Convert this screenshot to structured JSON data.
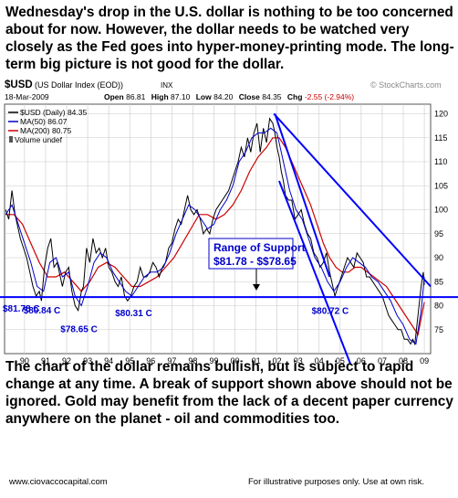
{
  "top_commentary": "Wednesday's drop in the U.S. dollar is nothing to be too concerned about for now.  However, the dollar needs to be watched very closely as the Fed goes into hyper-money-printing mode.  The long-term big picture is not good for the dollar.",
  "bottom_commentary": "The chart of the dollar remains bullish, but is subject to rapid change at any time.  A break of support shown above should not be ignored.  Gold may benefit from the lack of a decent paper currency anywhere on the planet - oil and commodities too.",
  "footer": {
    "website": "www.ciovaccocapital.com",
    "disclaimer": "For illustrative purposes only.  Use at own risk."
  },
  "chart_header": {
    "symbol": "$USD",
    "description": "(US Dollar Index (EOD))",
    "exchange": "INX",
    "date": "18-Mar-2009",
    "watermark": "© StockCharts.com",
    "open_label": "Open",
    "open_value": "86.81",
    "high_label": "High",
    "high_value": "87.10",
    "low_label": "Low",
    "low_value": "84.20",
    "close_label": "Close",
    "close_value": "84.35",
    "chg_label": "Chg",
    "chg_value": "-2.55 (-2.94%)",
    "legend_price": "$USD (Daily) 84.35",
    "legend_ma50": "MA(50) 86.07",
    "legend_ma200": "MA(200) 80.75",
    "legend_volume": "Volume undef"
  },
  "colors": {
    "price": "#000000",
    "ma50": "#0000cc",
    "ma200": "#cc0000",
    "trendlines": "#0000ff",
    "support": "#0000ff",
    "annotation_text": "#0000cc",
    "grid": "#c8c8c8",
    "plot_background": "#ffffff"
  },
  "annotations": {
    "range_title": "Range of Support",
    "range_values": "$81.78 - $$78.65",
    "lows": [
      {
        "label": "$81.78 C",
        "year": 1990.9,
        "value": 81.78
      },
      {
        "label": "$80.84 C",
        "year": 1991.2,
        "value": 80.84
      },
      {
        "label": "$78.65 C",
        "year": 1992.7,
        "value": 78.65
      },
      {
        "label": "$80.31 C",
        "year": 1995.3,
        "value": 80.31
      },
      {
        "label": "$80.72 C",
        "year": 2004.9,
        "value": 80.72
      }
    ]
  },
  "chart_data": {
    "type": "line",
    "xlim": [
      1989.25,
      2009.5
    ],
    "ylim": [
      70,
      122
    ],
    "x_ticks": [
      {
        "label": "90",
        "x": 1990.2
      },
      {
        "label": "91",
        "x": 1991.2
      },
      {
        "label": "92",
        "x": 1992.2
      },
      {
        "label": "93",
        "x": 1993.2
      },
      {
        "label": "94",
        "x": 1994.2
      },
      {
        "label": "95",
        "x": 1995.2
      },
      {
        "label": "96",
        "x": 1996.2
      },
      {
        "label": "97",
        "x": 1997.2
      },
      {
        "label": "98",
        "x": 1998.2
      },
      {
        "label": "99",
        "x": 1999.2
      },
      {
        "label": "00",
        "x": 2000.2
      },
      {
        "label": "01",
        "x": 2001.2
      },
      {
        "label": "02",
        "x": 2002.2
      },
      {
        "label": "03",
        "x": 2003.2
      },
      {
        "label": "04",
        "x": 2004.2
      },
      {
        "label": "05",
        "x": 2005.2
      },
      {
        "label": "06",
        "x": 2006.2
      },
      {
        "label": "07",
        "x": 2007.2
      },
      {
        "label": "08",
        "x": 2008.2
      },
      {
        "label": "09",
        "x": 2009.2
      }
    ],
    "y_ticks": [
      75,
      80,
      85,
      90,
      95,
      100,
      105,
      110,
      115,
      120
    ],
    "grid": true,
    "legend_position": "top-left",
    "series": [
      {
        "name": "$USD (Daily) 84.35",
        "x": [
          1989.3,
          1989.45,
          1989.6,
          1989.75,
          1989.9,
          1990.0,
          1990.15,
          1990.3,
          1990.45,
          1990.6,
          1990.75,
          1990.9,
          1991.0,
          1991.15,
          1991.3,
          1991.45,
          1991.6,
          1991.75,
          1991.9,
          1992.0,
          1992.15,
          1992.3,
          1992.45,
          1992.6,
          1992.75,
          1992.9,
          1993.0,
          1993.15,
          1993.3,
          1993.45,
          1993.6,
          1993.75,
          1993.9,
          1994.05,
          1994.2,
          1994.35,
          1994.5,
          1994.65,
          1994.8,
          1994.95,
          1995.1,
          1995.25,
          1995.4,
          1995.55,
          1995.7,
          1995.85,
          1996.0,
          1996.15,
          1996.3,
          1996.45,
          1996.6,
          1996.75,
          1996.9,
          1997.05,
          1997.2,
          1997.35,
          1997.5,
          1997.65,
          1997.8,
          1997.95,
          1998.1,
          1998.25,
          1998.4,
          1998.55,
          1998.7,
          1998.85,
          1999.0,
          1999.15,
          1999.3,
          1999.45,
          1999.6,
          1999.75,
          1999.9,
          2000.05,
          2000.2,
          2000.35,
          2000.5,
          2000.65,
          2000.8,
          2000.95,
          2001.1,
          2001.25,
          2001.4,
          2001.55,
          2001.7,
          2001.85,
          2002.0,
          2002.1,
          2002.2,
          2002.3,
          2002.4,
          2002.5,
          2002.6,
          2002.75,
          2002.9,
          2003.05,
          2003.2,
          2003.35,
          2003.5,
          2003.65,
          2003.8,
          2003.95,
          2004.1,
          2004.25,
          2004.4,
          2004.55,
          2004.7,
          2004.85,
          2004.95,
          2005.1,
          2005.25,
          2005.4,
          2005.55,
          2005.7,
          2005.85,
          2006.0,
          2006.15,
          2006.3,
          2006.45,
          2006.6,
          2006.75,
          2006.9,
          2007.05,
          2007.2,
          2007.35,
          2007.5,
          2007.65,
          2007.8,
          2007.95,
          2008.1,
          2008.25,
          2008.4,
          2008.55,
          2008.65,
          2008.75,
          2008.85,
          2008.95,
          2009.05,
          2009.15,
          2009.2
        ],
        "y": [
          100,
          98,
          104,
          99,
          96,
          94,
          92,
          90,
          87,
          84,
          82,
          83,
          81,
          88,
          92,
          94,
          88,
          89,
          86,
          84,
          87,
          88,
          83,
          80,
          79,
          83,
          84,
          92,
          89,
          94,
          91,
          92,
          90,
          92,
          88,
          87,
          85,
          84,
          86,
          82,
          81,
          82,
          84,
          85,
          88,
          86,
          86,
          87,
          89,
          88,
          86,
          88,
          89,
          92,
          93,
          96,
          98,
          97,
          100,
          103,
          100,
          99,
          100,
          98,
          95,
          96,
          95,
          98,
          100,
          101,
          102,
          103,
          104,
          106,
          108,
          110,
          113,
          111,
          115,
          112,
          116,
          118,
          112,
          117,
          114,
          119,
          118,
          116,
          113,
          111,
          108,
          106,
          103,
          102,
          102,
          98,
          99,
          100,
          97,
          95,
          94,
          91,
          90,
          88,
          89,
          91,
          87,
          84,
          82,
          84,
          86,
          88,
          90,
          89,
          88,
          91,
          90,
          89,
          86,
          86,
          85,
          84,
          83,
          82,
          80,
          78,
          77,
          76,
          75,
          75,
          73,
          73,
          72,
          73,
          72,
          76,
          80,
          84,
          87,
          84.35
        ]
      },
      {
        "name": "MA(50) 86.07",
        "x": [
          1989.3,
          1989.6,
          1989.9,
          1990.2,
          1990.5,
          1990.8,
          1991.1,
          1991.4,
          1991.7,
          1992.0,
          1992.3,
          1992.6,
          1992.9,
          1993.2,
          1993.5,
          1993.8,
          1994.1,
          1994.4,
          1994.7,
          1995.0,
          1995.3,
          1995.6,
          1995.9,
          1996.2,
          1996.5,
          1996.8,
          1997.1,
          1997.4,
          1997.7,
          1998.0,
          1998.3,
          1998.6,
          1998.9,
          1999.2,
          1999.5,
          1999.8,
          2000.1,
          2000.4,
          2000.7,
          2001.0,
          2001.3,
          2001.6,
          2001.9,
          2002.2,
          2002.5,
          2002.8,
          2003.1,
          2003.4,
          2003.7,
          2004.0,
          2004.3,
          2004.6,
          2004.9,
          2005.2,
          2005.5,
          2005.8,
          2006.1,
          2006.4,
          2006.7,
          2007.0,
          2007.3,
          2007.6,
          2007.9,
          2008.2,
          2008.5,
          2008.8,
          2009.05,
          2009.2
        ],
        "y": [
          99,
          101,
          97,
          93,
          89,
          84,
          83,
          89,
          90,
          86,
          87,
          82,
          80,
          84,
          89,
          91,
          90,
          87,
          85,
          83,
          82,
          84,
          86,
          87,
          87,
          88,
          91,
          95,
          98,
          101,
          100,
          98,
          96,
          97,
          100,
          102,
          105,
          110,
          112,
          115,
          116,
          116,
          117,
          116,
          110,
          104,
          100,
          98,
          94,
          90,
          88,
          85,
          83,
          85,
          88,
          90,
          89,
          88,
          86,
          85,
          83,
          81,
          78,
          76,
          73,
          72,
          79,
          86
        ]
      },
      {
        "name": "MA(200) 80.75",
        "x": [
          1989.3,
          1989.7,
          1990.1,
          1990.5,
          1990.9,
          1991.3,
          1991.7,
          1992.1,
          1992.5,
          1992.9,
          1993.3,
          1993.7,
          1994.1,
          1994.5,
          1994.9,
          1995.3,
          1995.7,
          1996.1,
          1996.5,
          1996.9,
          1997.3,
          1997.7,
          1998.1,
          1998.5,
          1998.9,
          1999.3,
          1999.7,
          2000.1,
          2000.5,
          2000.9,
          2001.3,
          2001.7,
          2002.0,
          2002.3,
          2002.6,
          2002.9,
          2003.2,
          2003.5,
          2003.8,
          2004.1,
          2004.4,
          2004.7,
          2005.0,
          2005.3,
          2005.6,
          2005.9,
          2006.2,
          2006.5,
          2006.8,
          2007.1,
          2007.4,
          2007.7,
          2008.0,
          2008.3,
          2008.6,
          2008.9,
          2009.2
        ],
        "y": [
          99,
          99,
          97,
          93,
          89,
          86,
          86,
          87,
          85,
          83,
          85,
          88,
          89,
          88,
          86,
          84,
          84,
          85,
          86,
          88,
          90,
          93,
          96,
          99,
          99,
          98,
          99,
          101,
          104,
          108,
          111,
          113,
          115,
          115,
          113,
          110,
          107,
          104,
          101,
          97,
          93,
          90,
          88,
          87,
          87,
          88,
          88,
          87,
          86,
          85,
          84,
          82,
          80,
          78,
          76,
          74,
          80.75
        ]
      }
    ],
    "overlays": [
      {
        "name": "support-line",
        "value": 81.78
      },
      {
        "name": "long-downtrend",
        "from": [
          2002.05,
          120
        ],
        "to": [
          2009.5,
          84
        ]
      },
      {
        "name": "steep-downtrend",
        "from": [
          2002.1,
          120
        ],
        "to": [
          2004.7,
          86
        ]
      },
      {
        "name": "steep-downtrend-2",
        "from": [
          2002.3,
          106
        ],
        "to": [
          2005.7,
          66
        ]
      }
    ]
  }
}
